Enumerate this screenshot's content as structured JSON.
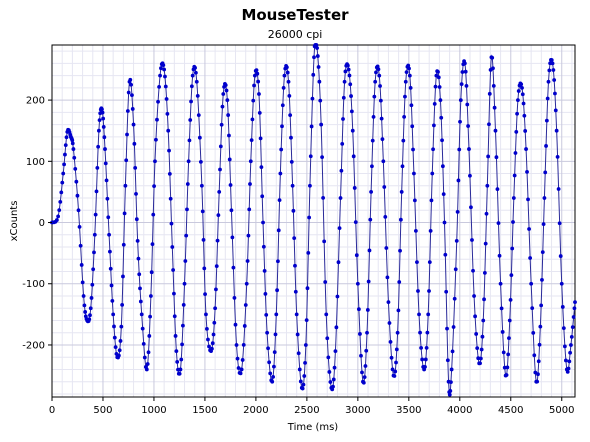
{
  "chart_data": {
    "type": "line",
    "title": "MouseTester",
    "subtitle": "26000 cpi",
    "xlabel": "Time (ms)",
    "ylabel": "xCounts",
    "xlim": [
      0,
      5130
    ],
    "ylim": [
      -285,
      290
    ],
    "x_ticks": [
      0,
      500,
      1000,
      1500,
      2000,
      2500,
      3000,
      3500,
      4000,
      4500,
      5000
    ],
    "y_ticks": [
      -200,
      -100,
      0,
      100,
      200
    ],
    "grid": true,
    "series": [
      {
        "line_color": "#2a2a9a",
        "marker_color": "#0000cc",
        "points": [
          [
            0,
            0
          ],
          [
            60,
            10
          ],
          [
            110,
            80
          ],
          [
            150,
            148
          ],
          [
            185,
            140
          ],
          [
            210,
            120
          ],
          [
            260,
            20
          ],
          [
            310,
            -120
          ],
          [
            345,
            -160
          ],
          [
            380,
            -140
          ],
          [
            420,
            -20
          ],
          [
            460,
            150
          ],
          [
            490,
            185
          ],
          [
            520,
            120
          ],
          [
            560,
            -20
          ],
          [
            600,
            -150
          ],
          [
            640,
            -220
          ],
          [
            680,
            -170
          ],
          [
            720,
            60
          ],
          [
            760,
            230
          ],
          [
            800,
            160
          ],
          [
            840,
            -30
          ],
          [
            880,
            -150
          ],
          [
            930,
            -240
          ],
          [
            970,
            -120
          ],
          [
            1010,
            100
          ],
          [
            1060,
            240
          ],
          [
            1100,
            250
          ],
          [
            1140,
            150
          ],
          [
            1180,
            -40
          ],
          [
            1220,
            -210
          ],
          [
            1260,
            -240
          ],
          [
            1300,
            -100
          ],
          [
            1340,
            100
          ],
          [
            1380,
            240
          ],
          [
            1420,
            230
          ],
          [
            1470,
            60
          ],
          [
            1510,
            -150
          ],
          [
            1560,
            -210
          ],
          [
            1600,
            -140
          ],
          [
            1640,
            50
          ],
          [
            1680,
            210
          ],
          [
            1720,
            200
          ],
          [
            1760,
            20
          ],
          [
            1810,
            -200
          ],
          [
            1860,
            -240
          ],
          [
            1910,
            -100
          ],
          [
            1950,
            100
          ],
          [
            1990,
            240
          ],
          [
            2030,
            210
          ],
          [
            2070,
            0
          ],
          [
            2110,
            -180
          ],
          [
            2160,
            -260
          ],
          [
            2200,
            -150
          ],
          [
            2240,
            80
          ],
          [
            2280,
            240
          ],
          [
            2320,
            230
          ],
          [
            2360,
            60
          ],
          [
            2400,
            -150
          ],
          [
            2450,
            -270
          ],
          [
            2490,
            -200
          ],
          [
            2530,
            60
          ],
          [
            2570,
            270
          ],
          [
            2600,
            285
          ],
          [
            2640,
            160
          ],
          [
            2690,
            -150
          ],
          [
            2740,
            -270
          ],
          [
            2780,
            -210
          ],
          [
            2830,
            40
          ],
          [
            2870,
            230
          ],
          [
            2910,
            250
          ],
          [
            2950,
            150
          ],
          [
            3000,
            -100
          ],
          [
            3050,
            -260
          ],
          [
            3090,
            -180
          ],
          [
            3130,
            50
          ],
          [
            3170,
            230
          ],
          [
            3210,
            240
          ],
          [
            3250,
            100
          ],
          [
            3300,
            -130
          ],
          [
            3350,
            -250
          ],
          [
            3390,
            -180
          ],
          [
            3430,
            50
          ],
          [
            3470,
            230
          ],
          [
            3510,
            240
          ],
          [
            3550,
            80
          ],
          [
            3600,
            -150
          ],
          [
            3650,
            -240
          ],
          [
            3690,
            -150
          ],
          [
            3730,
            80
          ],
          [
            3770,
            240
          ],
          [
            3810,
            200
          ],
          [
            3850,
            0
          ],
          [
            3890,
            -260
          ],
          [
            3920,
            -240
          ],
          [
            3970,
            -30
          ],
          [
            4010,
            200
          ],
          [
            4050,
            260
          ],
          [
            4090,
            120
          ],
          [
            4140,
            -120
          ],
          [
            4190,
            -230
          ],
          [
            4230,
            -160
          ],
          [
            4270,
            60
          ],
          [
            4310,
            270
          ],
          [
            4350,
            150
          ],
          [
            4400,
            -100
          ],
          [
            4450,
            -250
          ],
          [
            4490,
            -160
          ],
          [
            4530,
            40
          ],
          [
            4570,
            200
          ],
          [
            4610,
            220
          ],
          [
            4650,
            120
          ],
          [
            4700,
            -100
          ],
          [
            4750,
            -260
          ],
          [
            4790,
            -170
          ],
          [
            4830,
            40
          ],
          [
            4870,
            230
          ],
          [
            4910,
            260
          ],
          [
            4950,
            150
          ],
          [
            5000,
            -100
          ],
          [
            5050,
            -240
          ],
          [
            5090,
            -200
          ],
          [
            5130,
            -130
          ]
        ]
      }
    ]
  }
}
